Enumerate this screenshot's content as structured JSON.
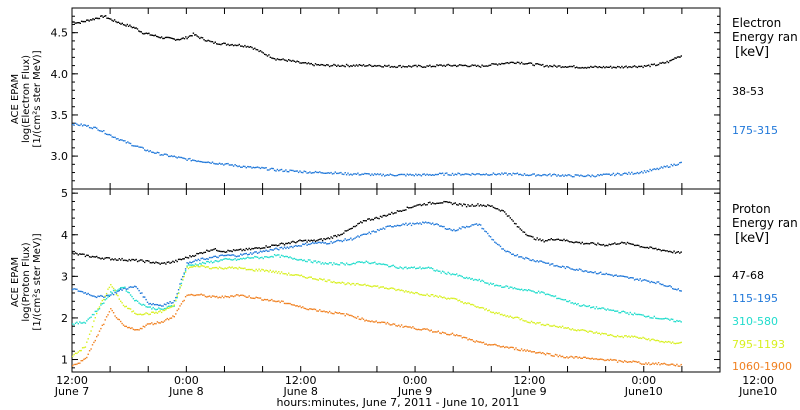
{
  "chart_data": [
    {
      "type": "scatter",
      "panel": "electron",
      "ylabel_lines": [
        "ACE EPAM",
        "log(Electron Flux)",
        "[1/(cm²s ster MeV)]"
      ],
      "ylim": [
        2.6,
        4.8
      ],
      "yticks": [
        3.0,
        3.5,
        4.0,
        4.5
      ],
      "ytick_labels": [
        "3.0",
        "3.5",
        "4.0",
        "4.5"
      ],
      "legend_title_lines": [
        "Electron",
        "Energy ran"
      ],
      "legend_unit": "[keV]",
      "legend_position": "right",
      "series": [
        {
          "name": "38-53",
          "color": "#000000",
          "x": [
            0,
            2,
            4,
            6,
            8,
            10,
            12,
            14,
            16,
            18,
            20,
            22,
            24,
            26,
            28,
            30,
            32,
            34,
            36,
            38,
            40,
            44,
            48,
            52,
            56,
            60,
            64,
            68,
            72,
            76,
            80,
            84,
            88,
            92,
            96,
            100,
            104,
            108,
            112,
            116,
            120,
            124,
            128,
            132,
            136,
            140,
            144,
            148,
            152,
            156,
            160,
            164,
            168,
            172,
            176,
            180,
            184,
            188,
            190,
            192
          ],
          "y": [
            4.63,
            4.62,
            4.64,
            4.66,
            4.68,
            4.7,
            4.66,
            4.63,
            4.6,
            4.58,
            4.55,
            4.5,
            4.48,
            4.46,
            4.44,
            4.43,
            4.42,
            4.42,
            4.44,
            4.48,
            4.44,
            4.38,
            4.36,
            4.35,
            4.33,
            4.25,
            4.18,
            4.16,
            4.13,
            4.11,
            4.1,
            4.1,
            4.1,
            4.1,
            4.1,
            4.09,
            4.09,
            4.09,
            4.09,
            4.1,
            4.1,
            4.1,
            4.09,
            4.11,
            4.13,
            4.14,
            4.12,
            4.1,
            4.09,
            4.09,
            4.08,
            4.08,
            4.08,
            4.08,
            4.09,
            4.09,
            4.11,
            4.15,
            4.2,
            4.22
          ]
        },
        {
          "name": "175-315",
          "color": "#1f77d9",
          "x": [
            0,
            4,
            8,
            12,
            16,
            20,
            24,
            28,
            32,
            36,
            40,
            44,
            48,
            52,
            56,
            60,
            64,
            68,
            72,
            76,
            80,
            84,
            88,
            92,
            96,
            100,
            104,
            108,
            112,
            116,
            120,
            124,
            128,
            132,
            136,
            140,
            144,
            148,
            152,
            156,
            160,
            164,
            168,
            172,
            176,
            180,
            184,
            188,
            192
          ],
          "y": [
            3.39,
            3.37,
            3.33,
            3.25,
            3.18,
            3.12,
            3.06,
            3.02,
            2.99,
            2.96,
            2.94,
            2.92,
            2.9,
            2.88,
            2.86,
            2.85,
            2.83,
            2.82,
            2.81,
            2.8,
            2.8,
            2.79,
            2.78,
            2.78,
            2.77,
            2.77,
            2.77,
            2.77,
            2.77,
            2.78,
            2.78,
            2.78,
            2.78,
            2.78,
            2.78,
            2.78,
            2.77,
            2.77,
            2.77,
            2.76,
            2.76,
            2.76,
            2.77,
            2.78,
            2.79,
            2.81,
            2.84,
            2.88,
            2.92
          ]
        }
      ]
    },
    {
      "type": "scatter",
      "panel": "proton",
      "ylabel_lines": [
        "ACE EPAM",
        "log(Proton Flux)",
        "[1/(cm²s ster MeV)]"
      ],
      "ylim": [
        0.7,
        5.1
      ],
      "yticks": [
        1,
        2,
        3,
        4,
        5
      ],
      "ytick_labels": [
        "1",
        "2",
        "3",
        "4",
        "5"
      ],
      "legend_title_lines": [
        "Proton",
        "Energy ran"
      ],
      "legend_unit": "[keV]",
      "legend_position": "right",
      "series": [
        {
          "name": "47-68",
          "color": "#000000",
          "x": [
            0,
            4,
            8,
            12,
            16,
            20,
            24,
            28,
            32,
            36,
            40,
            44,
            48,
            52,
            56,
            60,
            64,
            68,
            72,
            76,
            80,
            84,
            88,
            92,
            96,
            100,
            104,
            108,
            112,
            116,
            120,
            124,
            128,
            132,
            136,
            140,
            144,
            148,
            152,
            156,
            160,
            164,
            168,
            172,
            176,
            180,
            184,
            188,
            192
          ],
          "y": [
            3.55,
            3.5,
            3.45,
            3.42,
            3.4,
            3.38,
            3.35,
            3.3,
            3.35,
            3.45,
            3.55,
            3.65,
            3.6,
            3.62,
            3.65,
            3.7,
            3.75,
            3.8,
            3.85,
            3.85,
            3.9,
            4.0,
            4.15,
            4.35,
            4.4,
            4.5,
            4.6,
            4.7,
            4.75,
            4.78,
            4.75,
            4.7,
            4.72,
            4.68,
            4.55,
            4.2,
            3.95,
            3.85,
            3.9,
            3.85,
            3.8,
            3.78,
            3.75,
            3.8,
            3.78,
            3.7,
            3.65,
            3.6,
            3.55
          ]
        },
        {
          "name": "115-195",
          "color": "#1f77d9",
          "x": [
            0,
            4,
            8,
            12,
            16,
            20,
            24,
            28,
            32,
            36,
            40,
            44,
            48,
            52,
            56,
            60,
            64,
            68,
            72,
            76,
            80,
            84,
            88,
            92,
            96,
            100,
            104,
            108,
            112,
            116,
            120,
            124,
            128,
            132,
            136,
            140,
            144,
            148,
            152,
            156,
            160,
            164,
            168,
            172,
            176,
            180,
            184,
            188,
            192
          ],
          "y": [
            2.7,
            2.6,
            2.5,
            2.55,
            2.7,
            2.75,
            2.35,
            2.3,
            2.4,
            3.3,
            3.4,
            3.45,
            3.5,
            3.5,
            3.55,
            3.6,
            3.65,
            3.7,
            3.75,
            3.8,
            3.8,
            3.85,
            3.9,
            4.0,
            4.1,
            4.2,
            4.25,
            4.25,
            4.3,
            4.2,
            4.1,
            4.2,
            4.25,
            3.9,
            3.6,
            3.5,
            3.4,
            3.35,
            3.25,
            3.2,
            3.15,
            3.1,
            3.05,
            3.0,
            2.95,
            2.9,
            2.85,
            2.75,
            2.65
          ]
        },
        {
          "name": "310-580",
          "color": "#20dccc",
          "x": [
            0,
            4,
            8,
            12,
            16,
            20,
            24,
            28,
            32,
            36,
            40,
            44,
            48,
            52,
            56,
            60,
            64,
            68,
            72,
            76,
            80,
            84,
            88,
            92,
            96,
            100,
            104,
            108,
            112,
            116,
            120,
            124,
            128,
            132,
            136,
            140,
            144,
            148,
            152,
            156,
            160,
            164,
            168,
            172,
            176,
            180,
            184,
            188,
            192
          ],
          "y": [
            1.85,
            1.9,
            2.2,
            2.6,
            2.75,
            2.4,
            2.25,
            2.2,
            2.3,
            3.25,
            3.3,
            3.35,
            3.4,
            3.4,
            3.45,
            3.45,
            3.5,
            3.45,
            3.4,
            3.35,
            3.3,
            3.3,
            3.3,
            3.35,
            3.3,
            3.25,
            3.2,
            3.2,
            3.2,
            3.1,
            3.05,
            2.95,
            2.9,
            2.8,
            2.75,
            2.7,
            2.65,
            2.6,
            2.5,
            2.4,
            2.3,
            2.25,
            2.2,
            2.15,
            2.1,
            2.05,
            2.0,
            1.95,
            1.9
          ]
        },
        {
          "name": "795-1193",
          "color": "#d8f020",
          "x": [
            0,
            4,
            8,
            12,
            16,
            20,
            24,
            28,
            32,
            36,
            40,
            44,
            48,
            52,
            56,
            60,
            64,
            68,
            72,
            76,
            80,
            84,
            88,
            92,
            96,
            100,
            104,
            108,
            112,
            116,
            120,
            124,
            128,
            132,
            136,
            140,
            144,
            148,
            152,
            156,
            160,
            164,
            168,
            172,
            176,
            180,
            184,
            188,
            192
          ],
          "y": [
            1.1,
            1.3,
            2.2,
            2.8,
            2.3,
            2.1,
            2.1,
            2.15,
            2.3,
            3.2,
            3.25,
            3.2,
            3.2,
            3.2,
            3.15,
            3.15,
            3.1,
            3.05,
            3.0,
            2.95,
            2.9,
            2.85,
            2.8,
            2.8,
            2.75,
            2.7,
            2.65,
            2.6,
            2.55,
            2.5,
            2.45,
            2.35,
            2.25,
            2.15,
            2.05,
            2.0,
            1.9,
            1.85,
            1.8,
            1.75,
            1.7,
            1.65,
            1.6,
            1.55,
            1.55,
            1.5,
            1.45,
            1.4,
            1.4
          ]
        },
        {
          "name": "1060-1900",
          "color": "#f08020",
          "x": [
            0,
            4,
            8,
            12,
            16,
            20,
            24,
            28,
            32,
            36,
            40,
            44,
            48,
            52,
            56,
            60,
            64,
            68,
            72,
            76,
            80,
            84,
            88,
            92,
            96,
            100,
            104,
            108,
            112,
            116,
            120,
            124,
            128,
            132,
            136,
            140,
            144,
            148,
            152,
            156,
            160,
            164,
            168,
            172,
            176,
            180,
            184,
            188,
            192
          ],
          "y": [
            0.85,
            1.0,
            1.6,
            2.2,
            1.8,
            1.7,
            1.85,
            1.9,
            2.05,
            2.55,
            2.55,
            2.5,
            2.5,
            2.55,
            2.5,
            2.45,
            2.4,
            2.35,
            2.25,
            2.2,
            2.15,
            2.1,
            2.05,
            1.95,
            1.9,
            1.85,
            1.8,
            1.75,
            1.7,
            1.65,
            1.6,
            1.5,
            1.4,
            1.35,
            1.3,
            1.25,
            1.2,
            1.15,
            1.1,
            1.05,
            1.05,
            1.0,
            1.0,
            0.95,
            0.95,
            0.9,
            0.9,
            0.88,
            0.85
          ]
        }
      ]
    }
  ],
  "x_axis": {
    "range": [
      0,
      204
    ],
    "ticks": [
      0,
      12,
      24,
      36,
      48,
      60,
      72,
      84,
      96,
      108,
      120,
      132,
      144,
      156,
      168,
      180,
      192,
      204
    ],
    "labeled_ticks": [
      {
        "x": 0,
        "time": "12:00",
        "day": "June 7"
      },
      {
        "x": 36,
        "time": "0:00",
        "day": "June 8"
      },
      {
        "x": 72,
        "time": "12:00",
        "day": "June 8"
      },
      {
        "x": 108,
        "time": "0:00",
        "day": "June 9"
      },
      {
        "x": 144,
        "time": "12:00",
        "day": "June 9"
      },
      {
        "x": 180,
        "time": "0:00",
        "day": "June10"
      },
      {
        "x": 216,
        "time": "12:00",
        "day": "June10"
      }
    ],
    "xlabel": "hours:minutes, June  7, 2011 - June 10, 2011"
  }
}
